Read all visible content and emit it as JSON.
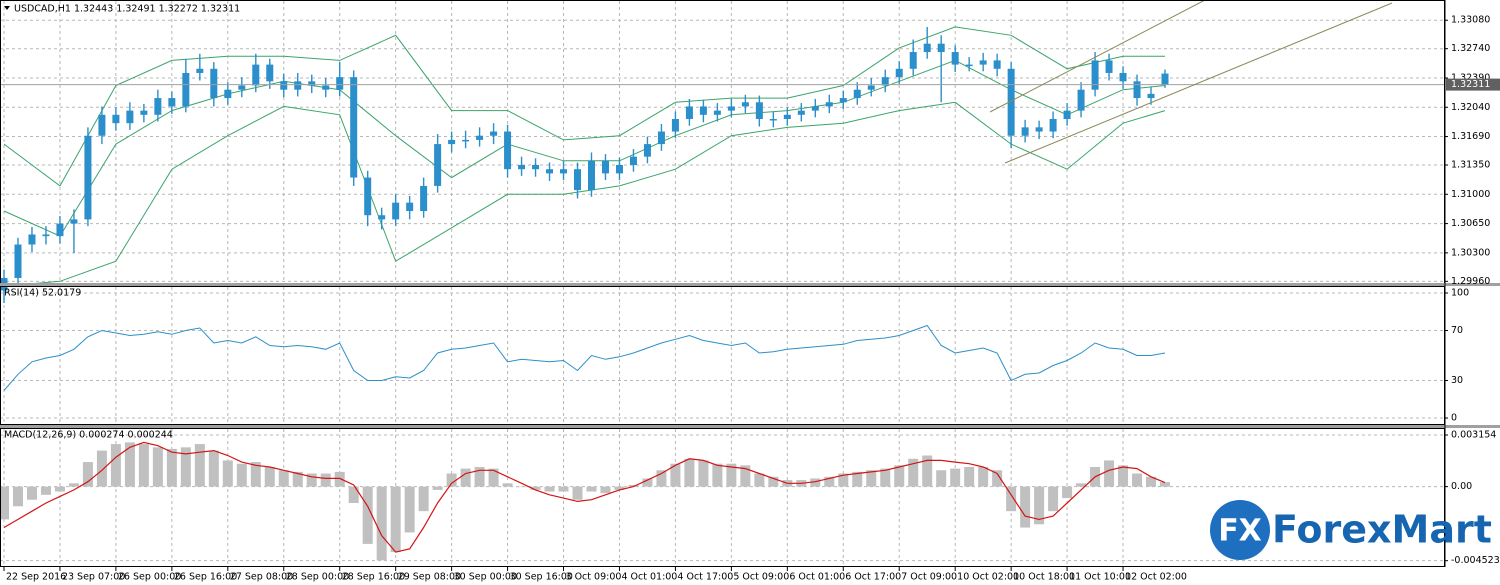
{
  "chart_data": [
    {
      "type": "candlestick",
      "title": "USDCAD,H1  1.32443 1.32491 1.32272 1.32311",
      "categories": [
        "22 Sep 2016",
        null,
        null,
        null,
        "23 Sep 07:00",
        null,
        null,
        null,
        "26 Sep 00:00",
        null,
        null,
        null,
        "26 Sep 16:00",
        null,
        null,
        null,
        "27 Sep 08:00",
        null,
        null,
        null,
        "28 Sep 00:00",
        null,
        null,
        null,
        "28 Sep 16:00",
        null,
        null,
        null,
        "29 Sep 08:00",
        null,
        null,
        null,
        "30 Sep 00:00",
        null,
        null,
        null,
        "30 Sep 16:00",
        null,
        null,
        null,
        "3 Oct 09:00",
        null,
        null,
        null,
        "4 Oct 01:00",
        null,
        null,
        null,
        "4 Oct 17:00",
        null,
        null,
        null,
        "5 Oct 09:00",
        null,
        null,
        null,
        "6 Oct 01:00",
        null,
        null,
        null,
        "6 Oct 17:00",
        null,
        null,
        null,
        "7 Oct 09:00",
        null,
        null,
        null,
        "10 Oct 02:00",
        null,
        null,
        null,
        "10 Oct 18:00",
        null,
        null,
        null,
        "11 Oct 10:00",
        null,
        null,
        null,
        "12 Oct 02:00",
        null,
        null,
        null
      ],
      "ohlc": [
        [
          1.2985,
          1.301,
          1.297,
          1.3
        ],
        [
          1.3,
          1.3048,
          1.2992,
          1.304
        ],
        [
          1.304,
          1.3061,
          1.3031,
          1.3052
        ],
        [
          1.3052,
          1.3062,
          1.304,
          1.305
        ],
        [
          1.305,
          1.3074,
          1.3041,
          1.3065
        ],
        [
          1.3065,
          1.3082,
          1.303,
          1.307
        ],
        [
          1.307,
          1.318,
          1.3062,
          1.317
        ],
        [
          1.317,
          1.3205,
          1.316,
          1.3195
        ],
        [
          1.3195,
          1.3204,
          1.3176,
          1.3185
        ],
        [
          1.3185,
          1.321,
          1.3177,
          1.32
        ],
        [
          1.32,
          1.3208,
          1.3186,
          1.3195
        ],
        [
          1.3195,
          1.3225,
          1.3187,
          1.3215
        ],
        [
          1.3215,
          1.3223,
          1.3196,
          1.3205
        ],
        [
          1.3205,
          1.3262,
          1.3198,
          1.3245
        ],
        [
          1.3245,
          1.3268,
          1.3236,
          1.325
        ],
        [
          1.325,
          1.3258,
          1.3205,
          1.3215
        ],
        [
          1.3215,
          1.3234,
          1.3207,
          1.3225
        ],
        [
          1.3225,
          1.324,
          1.3216,
          1.323
        ],
        [
          1.323,
          1.3268,
          1.3222,
          1.3255
        ],
        [
          1.3255,
          1.3262,
          1.3226,
          1.3235
        ],
        [
          1.3235,
          1.3244,
          1.3216,
          1.3225
        ],
        [
          1.3225,
          1.3245,
          1.3217,
          1.3235
        ],
        [
          1.3235,
          1.3243,
          1.3221,
          1.323
        ],
        [
          1.323,
          1.3239,
          1.3216,
          1.3225
        ],
        [
          1.3225,
          1.3258,
          1.3217,
          1.324
        ],
        [
          1.324,
          1.3248,
          1.311,
          1.312
        ],
        [
          1.312,
          1.3128,
          1.3062,
          1.3075
        ],
        [
          1.3075,
          1.3084,
          1.3058,
          1.307
        ],
        [
          1.307,
          1.31,
          1.3062,
          1.309
        ],
        [
          1.309,
          1.3098,
          1.307,
          1.308
        ],
        [
          1.308,
          1.312,
          1.3072,
          1.311
        ],
        [
          1.311,
          1.3172,
          1.3102,
          1.316
        ],
        [
          1.316,
          1.3175,
          1.315,
          1.3165
        ],
        [
          1.3165,
          1.3176,
          1.3155,
          1.3165
        ],
        [
          1.3165,
          1.318,
          1.3157,
          1.317
        ],
        [
          1.317,
          1.3185,
          1.316,
          1.3175
        ],
        [
          1.3175,
          1.3183,
          1.312,
          1.313
        ],
        [
          1.313,
          1.3145,
          1.3122,
          1.3135
        ],
        [
          1.3135,
          1.3143,
          1.3121,
          1.313
        ],
        [
          1.313,
          1.3138,
          1.3116,
          1.3125
        ],
        [
          1.3125,
          1.314,
          1.3117,
          1.313
        ],
        [
          1.313,
          1.3138,
          1.3095,
          1.3105
        ],
        [
          1.3105,
          1.315,
          1.3097,
          1.314
        ],
        [
          1.314,
          1.3148,
          1.3117,
          1.3125
        ],
        [
          1.3125,
          1.3144,
          1.3117,
          1.3135
        ],
        [
          1.3135,
          1.3154,
          1.3127,
          1.3145
        ],
        [
          1.3145,
          1.3169,
          1.3137,
          1.316
        ],
        [
          1.316,
          1.3184,
          1.3152,
          1.3175
        ],
        [
          1.3175,
          1.3199,
          1.3167,
          1.319
        ],
        [
          1.319,
          1.3214,
          1.3182,
          1.3205
        ],
        [
          1.3205,
          1.3213,
          1.3186,
          1.3195
        ],
        [
          1.3195,
          1.3209,
          1.3187,
          1.32
        ],
        [
          1.32,
          1.3214,
          1.3192,
          1.3205
        ],
        [
          1.3205,
          1.3219,
          1.3197,
          1.321
        ],
        [
          1.321,
          1.3218,
          1.3181,
          1.319
        ],
        [
          1.319,
          1.3199,
          1.318,
          1.319
        ],
        [
          1.319,
          1.3204,
          1.3182,
          1.3195
        ],
        [
          1.3195,
          1.3209,
          1.3187,
          1.32
        ],
        [
          1.32,
          1.3214,
          1.3192,
          1.3205
        ],
        [
          1.3205,
          1.3219,
          1.3197,
          1.321
        ],
        [
          1.321,
          1.3224,
          1.3202,
          1.3215
        ],
        [
          1.3215,
          1.3234,
          1.3207,
          1.3225
        ],
        [
          1.3225,
          1.3239,
          1.3217,
          1.323
        ],
        [
          1.323,
          1.3249,
          1.3222,
          1.324
        ],
        [
          1.324,
          1.3259,
          1.3232,
          1.325
        ],
        [
          1.325,
          1.3285,
          1.3242,
          1.327
        ],
        [
          1.327,
          1.33,
          1.3262,
          1.328
        ],
        [
          1.328,
          1.329,
          1.321,
          1.327
        ],
        [
          1.327,
          1.3278,
          1.3246,
          1.3255
        ],
        [
          1.3255,
          1.3264,
          1.3247,
          1.3255
        ],
        [
          1.3255,
          1.3269,
          1.3247,
          1.326
        ],
        [
          1.326,
          1.3268,
          1.3241,
          1.325
        ],
        [
          1.325,
          1.3258,
          1.3155,
          1.317
        ],
        [
          1.317,
          1.3189,
          1.3162,
          1.318
        ],
        [
          1.318,
          1.3188,
          1.3166,
          1.3175
        ],
        [
          1.3175,
          1.3199,
          1.3167,
          1.319
        ],
        [
          1.319,
          1.3209,
          1.3182,
          1.32
        ],
        [
          1.32,
          1.3234,
          1.3192,
          1.3225
        ],
        [
          1.3225,
          1.327,
          1.3217,
          1.326
        ],
        [
          1.326,
          1.3268,
          1.3236,
          1.3245
        ],
        [
          1.3245,
          1.3253,
          1.3226,
          1.3235
        ],
        [
          1.3235,
          1.3243,
          1.3206,
          1.3215
        ],
        [
          1.3215,
          1.3229,
          1.3207,
          1.322
        ],
        [
          1.32443,
          1.32491,
          1.32272,
          1.32311
        ]
      ],
      "color": "#2b8fcb",
      "ylim": [
        1.2994,
        1.3331
      ],
      "yticks": [
        {
          "value": 1.3308,
          "label": "1.33080"
        },
        {
          "value": 1.3274,
          "label": "1.32740"
        },
        {
          "value": 1.3239,
          "label": "1.32390"
        },
        {
          "value": 1.3204,
          "label": "1.32040"
        },
        {
          "value": 1.3169,
          "label": "1.31690"
        },
        {
          "value": 1.3135,
          "label": "1.31350"
        },
        {
          "value": 1.31,
          "label": "1.31000"
        },
        {
          "value": 1.3065,
          "label": "1.30650"
        },
        {
          "value": 1.303,
          "label": "1.30300"
        },
        {
          "value": 1.2996,
          "label": "1.29960"
        }
      ],
      "grid": true,
      "last_price": 1.32311,
      "last_price_color": "#606060",
      "bands": {
        "x": [
          0,
          4,
          8,
          12,
          16,
          20,
          24,
          28,
          32,
          36,
          40,
          44,
          48,
          52,
          56,
          60,
          64,
          68,
          72,
          76,
          80,
          83
        ],
        "color": "#3aa46a",
        "series": [
          {
            "values": [
              1.316,
              1.311,
              1.323,
              1.326,
              1.3265,
              1.3265,
              1.326,
              1.329,
              1.32,
              1.32,
              1.3165,
              1.317,
              1.321,
              1.3215,
              1.3215,
              1.323,
              1.3275,
              1.33,
              1.329,
              1.325,
              1.3265,
              1.3265
            ]
          },
          {
            "values": [
              1.308,
              1.305,
              1.316,
              1.32,
              1.322,
              1.3235,
              1.3225,
              1.317,
              1.312,
              1.316,
              1.314,
              1.314,
              1.317,
              1.3195,
              1.32,
              1.321,
              1.3235,
              1.326,
              1.3225,
              1.3195,
              1.3225,
              1.323
            ]
          },
          {
            "values": [
              1.299,
              1.2996,
              1.302,
              1.313,
              1.317,
              1.3205,
              1.3195,
              1.302,
              1.306,
              1.31,
              1.31,
              1.311,
              1.313,
              1.317,
              1.318,
              1.3185,
              1.32,
              1.321,
              1.316,
              1.313,
              1.3185,
              1.32
            ]
          }
        ]
      }
    },
    {
      "type": "line",
      "title": "RSI(14) 52.0179",
      "values": [
        22,
        35,
        45,
        48,
        50,
        55,
        65,
        70,
        68,
        66,
        67,
        69,
        67,
        70,
        72,
        60,
        62,
        60,
        65,
        58,
        57,
        58,
        57,
        55,
        60,
        38,
        30,
        30,
        33,
        32,
        38,
        52,
        55,
        56,
        58,
        60,
        45,
        47,
        46,
        45,
        46,
        38,
        50,
        47,
        49,
        52,
        56,
        60,
        63,
        66,
        62,
        60,
        58,
        60,
        52,
        53,
        55,
        56,
        57,
        58,
        59,
        62,
        63,
        64,
        66,
        70,
        74,
        58,
        52,
        54,
        56,
        52,
        30,
        35,
        36,
        42,
        46,
        52,
        60,
        56,
        55,
        50,
        50,
        52.0179
      ],
      "color": "#2b8fcb",
      "ylim": [
        -5.6,
        104.8
      ],
      "yticks": [
        100,
        70,
        30,
        0
      ],
      "grid": true
    },
    {
      "type": "macd",
      "title": "MACD(12,26,9) 0.000274 0.000244",
      "series": [
        {
          "values": [
            -0.002,
            -0.0012,
            -0.0008,
            -0.0005,
            -0.0003,
            0.0002,
            0.0015,
            0.0022,
            0.0026,
            0.0027,
            0.0026,
            0.0024,
            0.0023,
            0.0024,
            0.0026,
            0.0022,
            0.0016,
            0.0014,
            0.0015,
            0.0012,
            0.001,
            0.0009,
            0.0008,
            0.0008,
            0.0009,
            -0.001,
            -0.0035,
            -0.0045,
            -0.004,
            -0.0028,
            -0.0015,
            -0.0002,
            0.0008,
            0.0011,
            0.0012,
            0.0011,
            0.0002,
            0.0,
            -0.0002,
            -0.0003,
            -0.0003,
            -0.0008,
            -0.0003,
            -0.0004,
            -0.0002,
            0.0001,
            0.0005,
            0.001,
            0.0014,
            0.0017,
            0.0016,
            0.0014,
            0.0014,
            0.0013,
            0.0008,
            0.0006,
            0.0004,
            0.0004,
            0.0005,
            0.0006,
            0.0008,
            0.0009,
            0.001,
            0.0011,
            0.0013,
            0.0017,
            0.0019,
            0.001,
            0.0011,
            0.0012,
            0.0012,
            0.001,
            -0.0015,
            -0.0025,
            -0.0023,
            -0.0015,
            -0.0007,
            0.0002,
            0.0012,
            0.0016,
            0.0013,
            0.0008,
            0.0006,
            0.000274
          ],
          "color": "#c0c0c0"
        },
        {
          "values": [
            -0.0025,
            -0.002,
            -0.0015,
            -0.001,
            -0.0006,
            -0.0002,
            0.0003,
            0.001,
            0.0018,
            0.0024,
            0.0027,
            0.0025,
            0.0021,
            0.002,
            0.0021,
            0.0022,
            0.0019,
            0.0015,
            0.0013,
            0.0012,
            0.001,
            0.0008,
            0.0006,
            0.0005,
            0.0005,
            0.0001,
            -0.0012,
            -0.003,
            -0.004,
            -0.0038,
            -0.0025,
            -0.001,
            0.0002,
            0.0008,
            0.001,
            0.001,
            0.0006,
            0.0002,
            -0.0002,
            -0.0005,
            -0.0007,
            -0.0009,
            -0.0008,
            -0.0005,
            -0.0002,
            0.0,
            0.0004,
            0.0008,
            0.0013,
            0.0017,
            0.0016,
            0.0013,
            0.0012,
            0.0011,
            0.0008,
            0.0005,
            0.0002,
            0.0002,
            0.0003,
            0.0005,
            0.0007,
            0.0008,
            0.0009,
            0.001,
            0.0012,
            0.0014,
            0.0016,
            0.0016,
            0.0015,
            0.0014,
            0.0012,
            0.0008,
            -0.0005,
            -0.0018,
            -0.002,
            -0.0018,
            -0.001,
            -0.0002,
            0.0006,
            0.001,
            0.0012,
            0.0011,
            0.0006,
            0.000244
          ],
          "color": "#d41414"
        }
      ],
      "ylim": [
        -0.00491,
        0.00352
      ],
      "yticks": [
        0.003154,
        {
          "value": 0,
          "label": "0.00"
        },
        -0.004523
      ],
      "grid": true
    }
  ],
  "logo": {
    "mark": "FX",
    "name": "ForexMart"
  }
}
